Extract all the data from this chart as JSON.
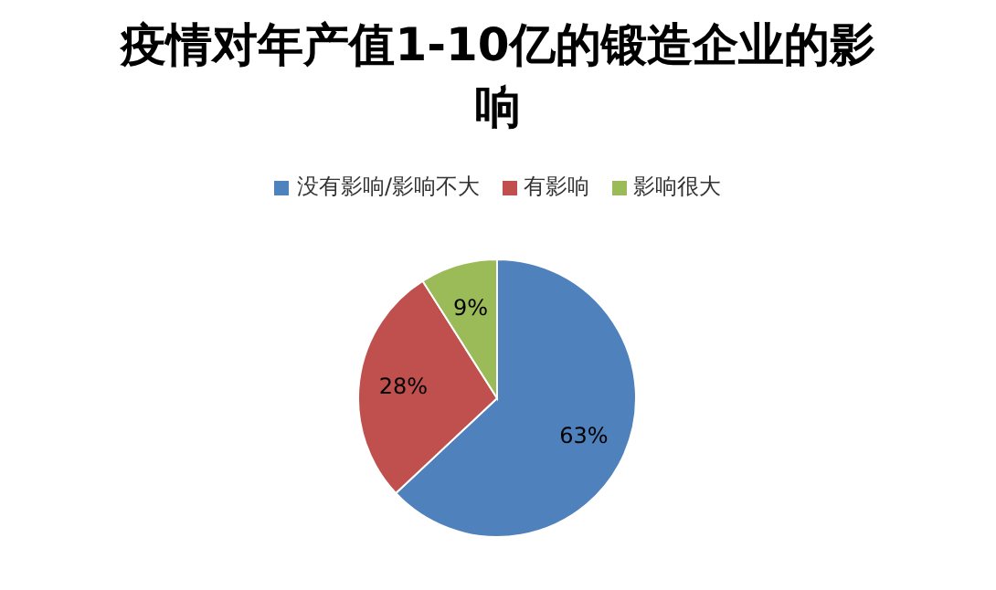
{
  "chart_data": {
    "type": "pie",
    "title": "疫情对年产值1-10亿的锻造企业的影响",
    "categories": [
      "没有影响/影响不大",
      "有影响",
      "影响很大"
    ],
    "values": [
      63,
      28,
      9
    ],
    "colors": [
      "#4f81bd",
      "#c0504d",
      "#9bbb59"
    ],
    "value_labels": [
      "63%",
      "28%",
      "9%"
    ],
    "legend": "top"
  }
}
